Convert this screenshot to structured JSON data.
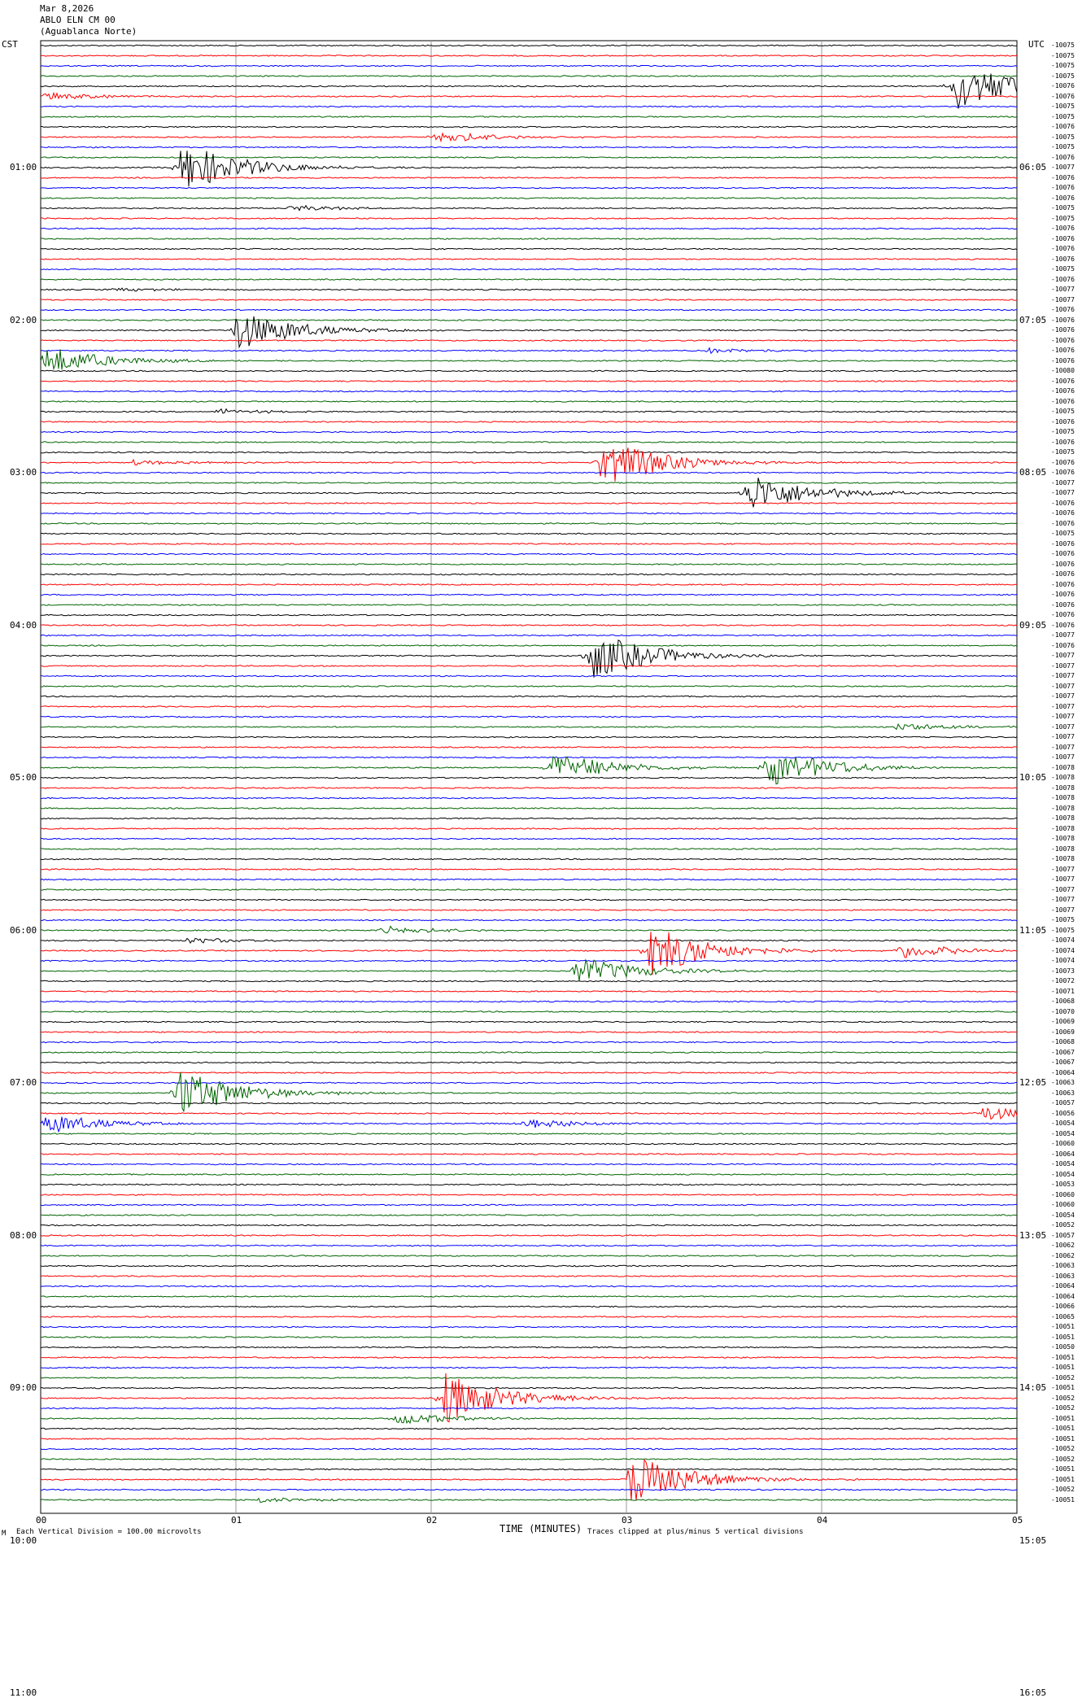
{
  "header": {
    "date": "Mar 8,2026",
    "station": "ABLO ELN CM 00",
    "location": "(Aguablanca Norte)"
  },
  "left_tz": "CST",
  "right_tz": "UTC",
  "footer": {
    "scale_note": "Each Vertical Division =  100.00 microvolts",
    "xlabel": "TIME (MINUTES)",
    "clip_note": "Traces clipped at plus/minus 5 vertical divisions",
    "corner_mark": "M"
  },
  "colors": [
    "#000000",
    "#ff0000",
    "#0000ff",
    "#006400"
  ],
  "chart_data": {
    "type": "line",
    "title": "",
    "xlabel": "TIME (MINUTES)",
    "x_ticks": [
      "00",
      "01",
      "02",
      "03",
      "04",
      "05"
    ],
    "xlim": [
      0,
      5
    ],
    "trace_count": 144,
    "trace_minutes": 5,
    "left_time_labels": [
      "01:00",
      "02:00",
      "03:00",
      "04:00",
      "05:00",
      "06:00",
      "07:00",
      "08:00",
      "09:00",
      "10:00",
      "11:00"
    ],
    "right_time_labels": [
      "06:05",
      "07:05",
      "08:05",
      "09:05",
      "10:05",
      "11:05",
      "12:05",
      "13:05",
      "14:05",
      "15:05",
      "16:05"
    ],
    "right_labels_first": "-10075",
    "trace_offsets": [
      "-10075",
      "-10075",
      "-10075",
      "-10075",
      "-10076",
      "-10076",
      "-10075",
      "-10075",
      "-10076",
      "-10075",
      "-10075",
      "-10076",
      "-10077",
      "-10076",
      "-10076",
      "-10076",
      "-10075",
      "-10075",
      "-10076",
      "-10076",
      "-10076",
      "-10076",
      "-10075",
      "-10076",
      "-10077",
      "-10077",
      "-10076",
      "-10076",
      "-10076",
      "-10076",
      "-10076",
      "-10076",
      "-10080",
      "-10076",
      "-10076",
      "-10076",
      "-10075",
      "-10076",
      "-10075",
      "-10076",
      "-10075",
      "-10076",
      "-10076",
      "-10077",
      "-10077",
      "-10076",
      "-10076",
      "-10076",
      "-10075",
      "-10076",
      "-10076",
      "-10076",
      "-10076",
      "-10076",
      "-10076",
      "-10076",
      "-10076",
      "-10076",
      "-10077",
      "-10076",
      "-10077",
      "-10077",
      "-10077",
      "-10077",
      "-10077",
      "-10077",
      "-10077",
      "-10077",
      "-10077",
      "-10077",
      "-10077",
      "-10078",
      "-10078",
      "-10078",
      "-10078",
      "-10078",
      "-10078",
      "-10078",
      "-10078",
      "-10078",
      "-10078",
      "-10077",
      "-10077",
      "-10077",
      "-10077",
      "-10077",
      "-10075",
      "-10075",
      "-10074",
      "-10074",
      "-10074",
      "-10073",
      "-10072",
      "-10071",
      "-10068",
      "-10070",
      "-10069",
      "-10069",
      "-10068",
      "-10067",
      "-10067",
      "-10064",
      "-10063",
      "-10063",
      "-10057",
      "-10056",
      "-10054",
      "-10054",
      "-10060",
      "-10064",
      "-10054",
      "-10054",
      "-10053",
      "-10060",
      "-10060",
      "-10054",
      "-10052",
      "-10057",
      "-10062",
      "-10062",
      "-10063",
      "-10063",
      "-10064",
      "-10064",
      "-10066",
      "-10065",
      "-10051",
      "-10051",
      "-10050",
      "-10051",
      "-10051",
      "-10052",
      "-10051",
      "-10052",
      "-10052",
      "-10051",
      "-10051",
      "-10051",
      "-10052",
      "-10052",
      "-10051",
      "-10051",
      "-10052",
      "-10051"
    ],
    "events": [
      {
        "trace": 4,
        "minute": 4.65,
        "amplitude": 5
      },
      {
        "trace": 5,
        "minute": 0.0,
        "amplitude": 0.8
      },
      {
        "trace": 9,
        "minute": 2.0,
        "amplitude": 1.2
      },
      {
        "trace": 12,
        "minute": 0.7,
        "amplitude": 5
      },
      {
        "trace": 16,
        "minute": 1.25,
        "amplitude": 0.6
      },
      {
        "trace": 24,
        "minute": 0.35,
        "amplitude": 0.4
      },
      {
        "trace": 28,
        "minute": 0.98,
        "amplitude": 4
      },
      {
        "trace": 31,
        "minute": 0.0,
        "amplitude": 3
      },
      {
        "trace": 30,
        "minute": 3.4,
        "amplitude": 0.5
      },
      {
        "trace": 36,
        "minute": 0.88,
        "amplitude": 0.5
      },
      {
        "trace": 41,
        "minute": 2.85,
        "amplitude": 5
      },
      {
        "trace": 44,
        "minute": 3.6,
        "amplitude": 4
      },
      {
        "trace": 41,
        "minute": 0.45,
        "amplitude": 0.5
      },
      {
        "trace": 60,
        "minute": 2.8,
        "amplitude": 5
      },
      {
        "trace": 71,
        "minute": 2.6,
        "amplitude": 3
      },
      {
        "trace": 71,
        "minute": 3.7,
        "amplitude": 4
      },
      {
        "trace": 67,
        "minute": 4.35,
        "amplitude": 0.8
      },
      {
        "trace": 89,
        "minute": 3.1,
        "amplitude": 5
      },
      {
        "trace": 91,
        "minute": 2.72,
        "amplitude": 3
      },
      {
        "trace": 89,
        "minute": 4.38,
        "amplitude": 1.5
      },
      {
        "trace": 87,
        "minute": 1.73,
        "amplitude": 0.8
      },
      {
        "trace": 88,
        "minute": 0.73,
        "amplitude": 0.6
      },
      {
        "trace": 103,
        "minute": 0.68,
        "amplitude": 5
      },
      {
        "trace": 106,
        "minute": 0.0,
        "amplitude": 2
      },
      {
        "trace": 106,
        "minute": 2.45,
        "amplitude": 1
      },
      {
        "trace": 105,
        "minute": 4.8,
        "amplitude": 1.5
      },
      {
        "trace": 133,
        "minute": 2.05,
        "amplitude": 5
      },
      {
        "trace": 135,
        "minute": 1.8,
        "amplitude": 1.2
      },
      {
        "trace": 141,
        "minute": 3.0,
        "amplitude": 5
      },
      {
        "trace": 143,
        "minute": 1.1,
        "amplitude": 0.5
      }
    ]
  }
}
